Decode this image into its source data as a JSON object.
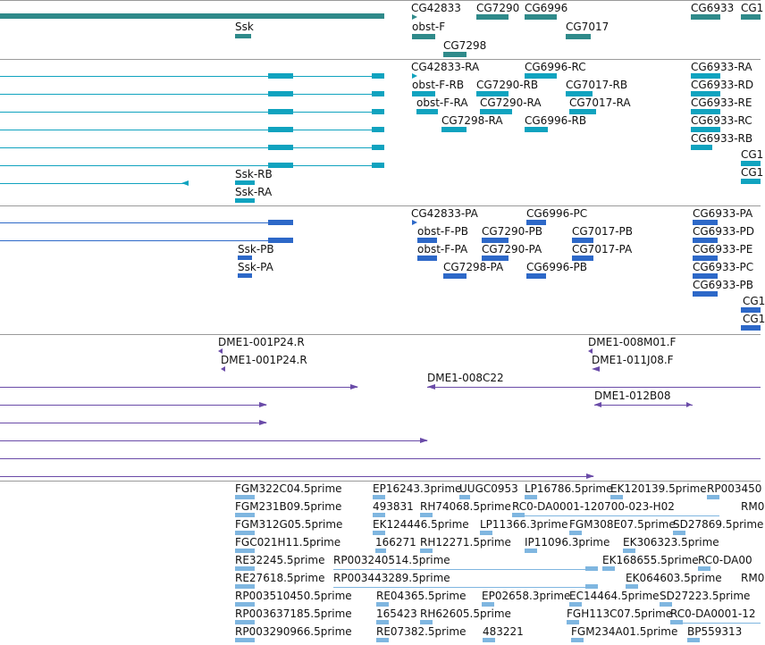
{
  "colors": {
    "gene": "#2f8a8a",
    "transcript": "#10a3bf",
    "protein": "#2d68c8",
    "clone": "#6a4ba8",
    "est": "#7fb6e0",
    "border": "#9a9a9a"
  },
  "tracks": {
    "genes": {
      "labels": [
        "CG42833",
        "CG7290",
        "CG6996",
        "CG6933",
        "CG1",
        "Ssk",
        "obst-F",
        "CG7017",
        "CG7298"
      ]
    },
    "transcripts": {
      "labels": [
        "CG42833-RA",
        "CG6996-RC",
        "CG6933-RA",
        "obst-F-RB",
        "CG7290-RB",
        "CG7017-RB",
        "CG6933-RD",
        "obst-F-RA",
        "CG7290-RA",
        "CG7017-RA",
        "CG6933-RE",
        "CG7298-RA",
        "CG6996-RB",
        "CG6933-RC",
        "CG6933-RB",
        "Ssk-RB",
        "Ssk-RA",
        "CG1",
        "CG1"
      ]
    },
    "proteins": {
      "labels": [
        "CG42833-PA",
        "CG6996-PC",
        "CG6933-PA",
        "obst-F-PB",
        "CG7290-PB",
        "CG7017-PB",
        "CG6933-PD",
        "obst-F-PA",
        "CG7290-PA",
        "CG7017-PA",
        "CG6933-PE",
        "CG7298-PA",
        "CG6996-PB",
        "CG6933-PC",
        "CG6933-PB",
        "Ssk-PB",
        "Ssk-PA",
        "CG1",
        "CG1"
      ]
    },
    "clones": {
      "labels": [
        "DME1-001P24.R",
        "DME1-001P24.R",
        "DME1-008M01.F",
        "DME1-011J08.F",
        "DME1-008C22",
        "DME1-012B08"
      ]
    },
    "ests": {
      "labels": [
        "FGM322C04.5prime",
        "EP16243.3prime",
        "UUGC0953",
        "LP16786.5prime",
        "EK120139.5prime",
        "RP003450",
        "FGM231B09.5prime",
        "493831",
        "RH74068.5prime",
        "RC0-DA0001-120700-023-H02",
        "RM0",
        "FGM312G05.5prime",
        "EK124446.5prime",
        "LP11366.3prime",
        "FGM308E07.5prime",
        "SD27869.5prime",
        "FGC021H11.5prime",
        "166271",
        "RH12271.5prime",
        "IP11096.3prime",
        "EK306323.5prime",
        "RE32245.5prime",
        "RP003240514.5prime",
        "EK168655.5prime",
        "RC0-DA00",
        "RE27618.5prime",
        "RP003443289.5prime",
        "EK064603.5prime",
        "RM0",
        "RP003510450.5prime",
        "RE04365.5prime",
        "EP02658.3prime",
        "EC14464.5prime",
        "SD27223.5prime",
        "RP003637185.5prime",
        "165423",
        "RH62605.5prime",
        "FGH113C07.5prime",
        "RC0-DA0001-12",
        "RP003290966.5prime",
        "RE07382.5prime",
        "483221",
        "FGM234A01.5prime",
        "BP559313"
      ]
    }
  }
}
